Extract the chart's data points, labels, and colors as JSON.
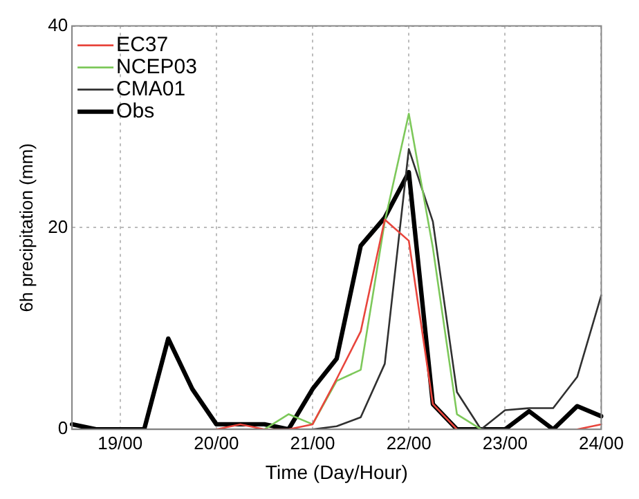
{
  "chart_data": {
    "type": "line",
    "xlabel": "Time (Day/Hour)",
    "ylabel": "6h precipitation (mm)",
    "categories": [
      null,
      null,
      "19/00",
      null,
      null,
      null,
      "20/00",
      null,
      null,
      null,
      "21/00",
      null,
      null,
      null,
      "22/00",
      null,
      null,
      null,
      "23/00",
      null,
      null,
      null,
      "24/00"
    ],
    "series": [
      {
        "name": "EC37",
        "color": "#e8453c",
        "values": [
          null,
          null,
          null,
          null,
          null,
          null,
          0,
          0.5,
          0,
          0,
          0.5,
          5,
          9.7,
          20.8,
          18.7,
          2.5,
          0,
          null,
          null,
          null,
          null,
          0,
          0.5
        ]
      },
      {
        "name": "NCEP03",
        "color": "#7dc85a",
        "values": [
          null,
          null,
          null,
          null,
          null,
          null,
          null,
          null,
          0,
          1.5,
          0.5,
          4.8,
          5.9,
          20.6,
          31.3,
          18,
          1.5,
          0,
          null,
          null,
          null,
          null,
          null
        ]
      },
      {
        "name": "CMA01",
        "color": "#303030",
        "values": [
          0,
          0,
          0,
          0,
          0,
          0,
          0,
          0,
          0,
          0,
          0,
          0.3,
          1.2,
          6.5,
          27.8,
          20.6,
          3.7,
          0,
          1.9,
          2.1,
          2.1,
          5.2,
          13.3
        ]
      },
      {
        "name": "Obs",
        "color": "#000000",
        "values": [
          0.5,
          0,
          0,
          0,
          9,
          4,
          0.5,
          0.5,
          0.5,
          0,
          4,
          7,
          18.2,
          21,
          25.5,
          2.5,
          0,
          0,
          0,
          1.8,
          0,
          2.3,
          1.3
        ]
      }
    ],
    "ylim": [
      0,
      40
    ],
    "yticks": [
      0,
      20,
      40
    ],
    "grid": true,
    "legend": "top left",
    "marker": "none",
    "line_style": "solid"
  }
}
